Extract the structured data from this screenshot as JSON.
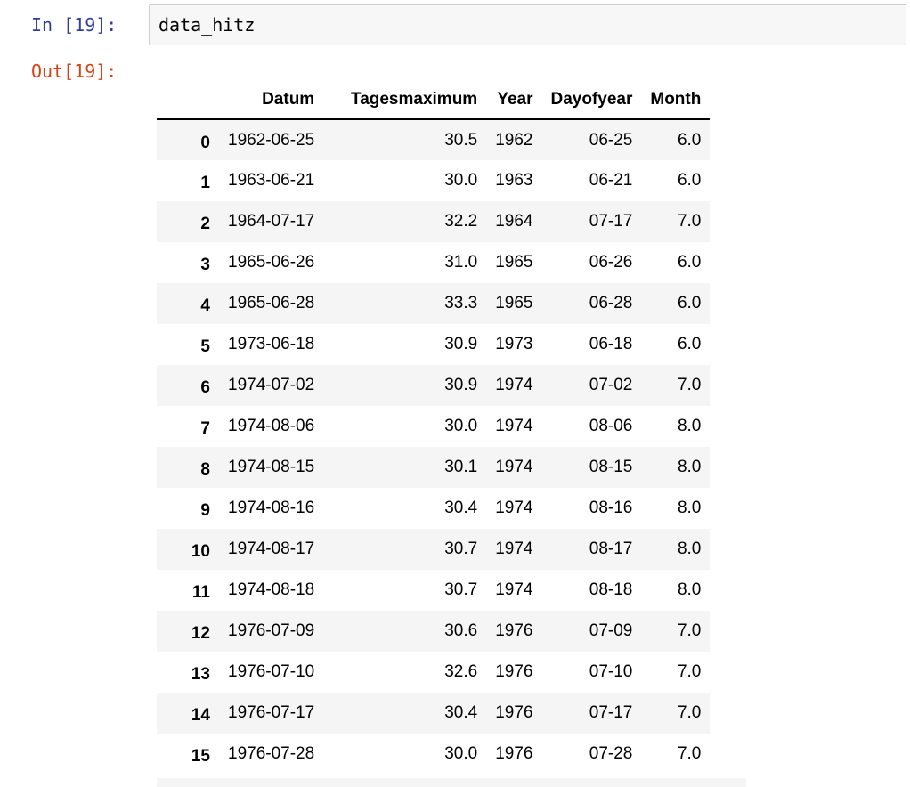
{
  "cell": {
    "in_prompt": "In [19]:",
    "out_prompt": "Out[19]:",
    "code": "data_hitz"
  },
  "dataframe": {
    "index_header": "",
    "columns": [
      "Datum",
      "Tagesmaximum",
      "Year",
      "Dayofyear",
      "Month"
    ],
    "rows": [
      {
        "index": "0",
        "datum": "1962-06-25",
        "tagesmaximum": "30.5",
        "year": "1962",
        "dayofyear": "06-25",
        "month": "6.0"
      },
      {
        "index": "1",
        "datum": "1963-06-21",
        "tagesmaximum": "30.0",
        "year": "1963",
        "dayofyear": "06-21",
        "month": "6.0"
      },
      {
        "index": "2",
        "datum": "1964-07-17",
        "tagesmaximum": "32.2",
        "year": "1964",
        "dayofyear": "07-17",
        "month": "7.0"
      },
      {
        "index": "3",
        "datum": "1965-06-26",
        "tagesmaximum": "31.0",
        "year": "1965",
        "dayofyear": "06-26",
        "month": "6.0"
      },
      {
        "index": "4",
        "datum": "1965-06-28",
        "tagesmaximum": "33.3",
        "year": "1965",
        "dayofyear": "06-28",
        "month": "6.0"
      },
      {
        "index": "5",
        "datum": "1973-06-18",
        "tagesmaximum": "30.9",
        "year": "1973",
        "dayofyear": "06-18",
        "month": "6.0"
      },
      {
        "index": "6",
        "datum": "1974-07-02",
        "tagesmaximum": "30.9",
        "year": "1974",
        "dayofyear": "07-02",
        "month": "7.0"
      },
      {
        "index": "7",
        "datum": "1974-08-06",
        "tagesmaximum": "30.0",
        "year": "1974",
        "dayofyear": "08-06",
        "month": "8.0"
      },
      {
        "index": "8",
        "datum": "1974-08-15",
        "tagesmaximum": "30.1",
        "year": "1974",
        "dayofyear": "08-15",
        "month": "8.0"
      },
      {
        "index": "9",
        "datum": "1974-08-16",
        "tagesmaximum": "30.4",
        "year": "1974",
        "dayofyear": "08-16",
        "month": "8.0"
      },
      {
        "index": "10",
        "datum": "1974-08-17",
        "tagesmaximum": "30.7",
        "year": "1974",
        "dayofyear": "08-17",
        "month": "8.0"
      },
      {
        "index": "11",
        "datum": "1974-08-18",
        "tagesmaximum": "30.7",
        "year": "1974",
        "dayofyear": "08-18",
        "month": "8.0"
      },
      {
        "index": "12",
        "datum": "1976-07-09",
        "tagesmaximum": "30.6",
        "year": "1976",
        "dayofyear": "07-09",
        "month": "7.0"
      },
      {
        "index": "13",
        "datum": "1976-07-10",
        "tagesmaximum": "32.6",
        "year": "1976",
        "dayofyear": "07-10",
        "month": "7.0"
      },
      {
        "index": "14",
        "datum": "1976-07-17",
        "tagesmaximum": "30.4",
        "year": "1976",
        "dayofyear": "07-17",
        "month": "7.0"
      },
      {
        "index": "15",
        "datum": "1976-07-28",
        "tagesmaximum": "30.0",
        "year": "1976",
        "dayofyear": "07-28",
        "month": "7.0"
      }
    ]
  },
  "colors": {
    "in_prompt": "#303f9f",
    "out_prompt": "#d84315",
    "input_background": "#f7f7f7",
    "row_stripe": "#f5f5f5"
  }
}
